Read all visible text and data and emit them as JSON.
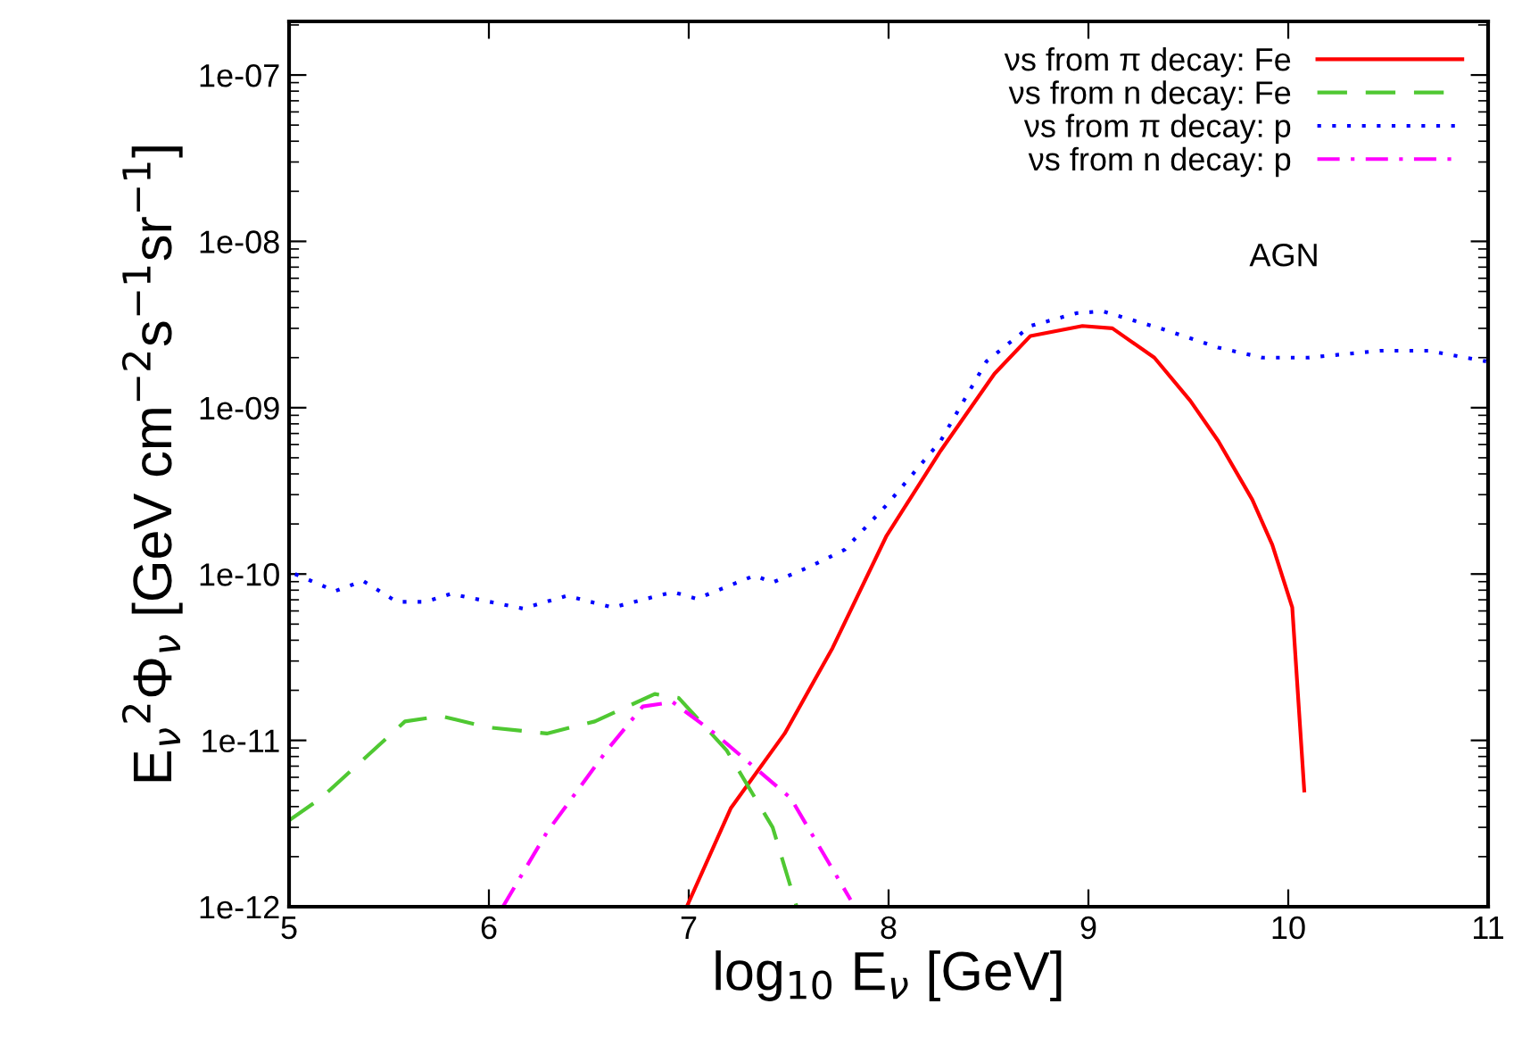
{
  "chart_data": {
    "type": "line",
    "xlabel": "log$_{10}$ E$_{ν}$ [GeV]",
    "ylabel": "E$_{ν}$$^{2}$Φ$_{ν}$ [GeV cm$^{−2}$s$^{−1}$sr$^{−1}$]",
    "annotations": [
      "AGN"
    ],
    "log": "y",
    "xlim": [
      5,
      11
    ],
    "xticks": [
      5,
      6,
      7,
      8,
      9,
      10,
      11
    ],
    "ylim": [
      1e-12,
      2.1e-07
    ],
    "yticks": [
      {
        "value": 1e-12,
        "label": "1e-12"
      },
      {
        "value": 1e-11,
        "label": "1e-11"
      },
      {
        "value": 1e-10,
        "label": "1e-10"
      },
      {
        "value": 1e-09,
        "label": "1e-09"
      },
      {
        "value": 1e-08,
        "label": "1e-08"
      },
      {
        "value": 1e-07,
        "label": "1e-07"
      }
    ],
    "grid": false,
    "legend": "top right",
    "series": [
      {
        "name": "νs from π decay: Fe",
        "color": "#ff0000",
        "line_style": "solid",
        "x": [
          6.99,
          7.21,
          7.48,
          7.72,
          7.99,
          8.26,
          8.53,
          8.71,
          8.97,
          9.12,
          9.33,
          9.51,
          9.65,
          9.82,
          9.92,
          10.02,
          10.08
        ],
        "values": [
          1e-12,
          3.9e-12,
          1.1e-11,
          3.6e-11,
          1.7e-10,
          5.5e-10,
          1.6e-09,
          2.7e-09,
          3.1e-09,
          3e-09,
          2e-09,
          1.1e-09,
          6.3e-10,
          2.8e-10,
          1.5e-10,
          6.3e-11,
          5e-12
        ]
      },
      {
        "name": "νs from n decay: Fe",
        "color": "#4fc832",
        "line_style": "dashed",
        "x": [
          5.0,
          5.16,
          5.58,
          5.76,
          5.99,
          6.29,
          6.53,
          6.83,
          6.95,
          7.19,
          7.42,
          7.54
        ],
        "values": [
          3.3e-12,
          4.5e-12,
          1.3e-11,
          1.4e-11,
          1.2e-11,
          1.1e-11,
          1.3e-11,
          1.9e-11,
          1.8e-11,
          8.7e-12,
          3e-12,
          1e-12
        ]
      },
      {
        "name": "νs from π decay: p",
        "color": "#0000ff",
        "line_style": "dotted",
        "x": [
          5.03,
          5.23,
          5.37,
          5.54,
          5.68,
          5.81,
          6.17,
          6.39,
          6.62,
          6.92,
          7.04,
          7.33,
          7.42,
          7.6,
          7.78,
          7.99,
          8.26,
          8.49,
          8.71,
          8.94,
          9.07,
          9.36,
          9.65,
          9.87,
          10.1,
          10.46,
          10.7,
          10.99
        ],
        "values": [
          1e-10,
          7.9e-11,
          9.1e-11,
          6.8e-11,
          6.8e-11,
          7.6e-11,
          6.2e-11,
          7.4e-11,
          6.3e-11,
          7.8e-11,
          7.1e-11,
          9.8e-11,
          8.9e-11,
          1.1e-10,
          1.4e-10,
          2.6e-10,
          6.3e-10,
          1.9e-09,
          3.1e-09,
          3.7e-09,
          3.8e-09,
          3e-09,
          2.3e-09,
          2e-09,
          2e-09,
          2.2e-09,
          2.2e-09,
          1.9e-09
        ]
      },
      {
        "name": "νs from n decay: p",
        "color": "#ff00ff",
        "line_style": "dashdot",
        "x": [
          6.07,
          6.29,
          6.59,
          6.77,
          6.92,
          7.13,
          7.51,
          7.81
        ],
        "values": [
          1e-12,
          2.8e-12,
          8.7e-12,
          1.6e-11,
          1.7e-11,
          1.1e-11,
          4.5e-12,
          1.1e-12
        ]
      }
    ]
  }
}
